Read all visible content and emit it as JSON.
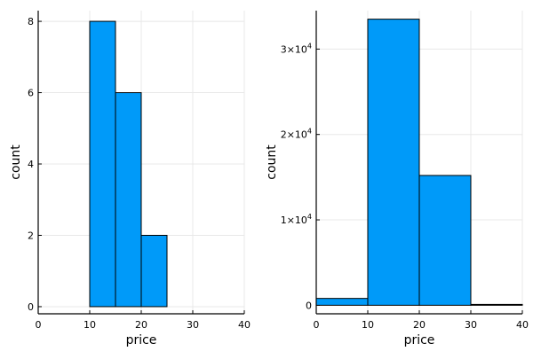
{
  "chart_data": [
    {
      "type": "bar",
      "bins": [
        [
          10,
          15
        ],
        [
          15,
          20
        ],
        [
          20,
          25
        ]
      ],
      "values": [
        8,
        6,
        2
      ],
      "xlabel": "price",
      "ylabel": "count",
      "xlim": [
        0,
        40
      ],
      "ylim": [
        -0.2,
        8.3
      ],
      "xticks": [
        "0",
        "10",
        "20",
        "30",
        "40"
      ],
      "yticks": [
        "0",
        "2",
        "4",
        "6",
        "8"
      ],
      "grid": true,
      "bar_color": "#009af9"
    },
    {
      "type": "bar",
      "bins": [
        [
          0,
          10
        ],
        [
          10,
          20
        ],
        [
          20,
          30
        ],
        [
          30,
          40
        ]
      ],
      "values": [
        800,
        33500,
        15200,
        100
      ],
      "xlabel": "price",
      "ylabel": "count",
      "xlim": [
        0,
        40
      ],
      "ylim": [
        -1000,
        34500
      ],
      "xticks": [
        "0",
        "10",
        "20",
        "30",
        "40"
      ],
      "yticks": [
        {
          "value": 0,
          "label": "0"
        },
        {
          "value": 10000,
          "mantissa": "1",
          "base": "10",
          "exponent": "4"
        },
        {
          "value": 20000,
          "mantissa": "2",
          "base": "10",
          "exponent": "4"
        },
        {
          "value": 30000,
          "mantissa": "3",
          "base": "10",
          "exponent": "4"
        }
      ],
      "grid": true,
      "bar_color": "#009af9"
    }
  ]
}
